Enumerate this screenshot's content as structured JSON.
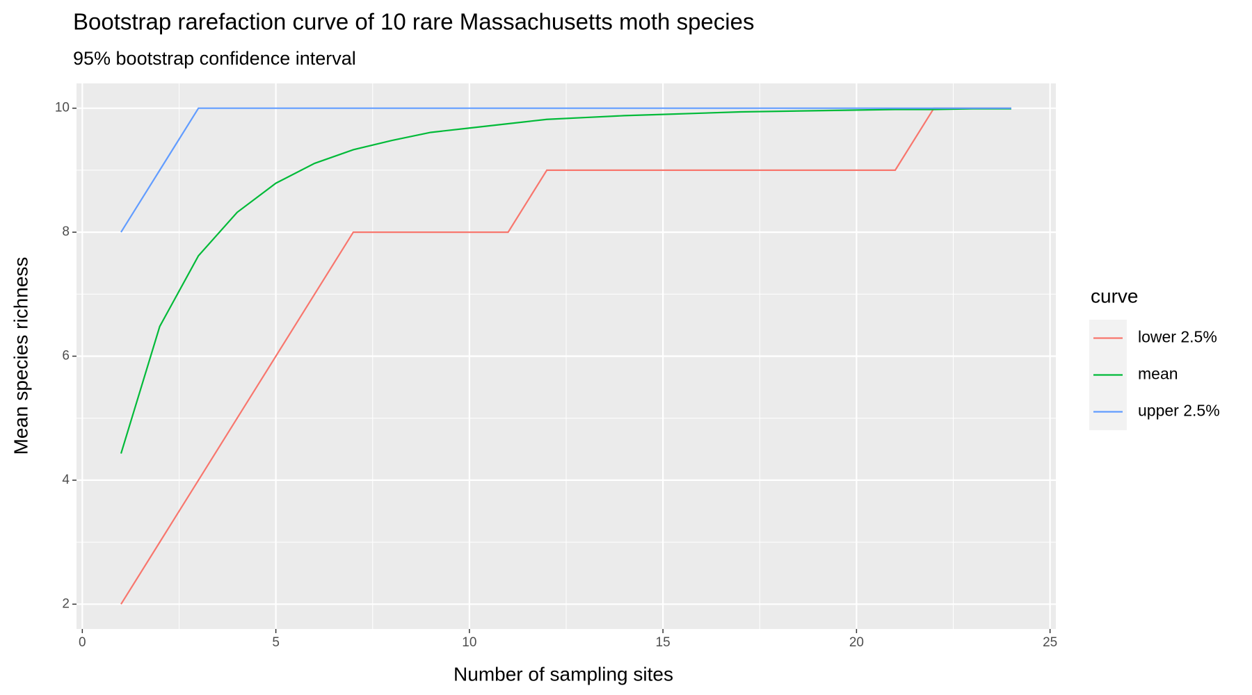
{
  "chart_data": {
    "type": "line",
    "title": "Bootstrap rarefaction curve of 10 rare Massachusetts moth species",
    "subtitle": "95% bootstrap confidence interval",
    "x_label": "Number of sampling sites",
    "y_label": "Mean species richness",
    "legend_title": "curve",
    "legend_position": "right",
    "grid": true,
    "x": [
      1,
      2,
      3,
      4,
      5,
      6,
      7,
      8,
      9,
      10,
      11,
      12,
      13,
      14,
      15,
      16,
      17,
      18,
      19,
      20,
      21,
      22,
      23,
      24
    ],
    "series": [
      {
        "name": "lower 2.5%",
        "color": "#F8766D",
        "values": [
          2,
          3,
          4,
          5,
          6,
          7,
          8,
          8,
          8,
          8,
          8,
          9,
          9,
          9,
          9,
          9,
          9,
          9,
          9,
          9,
          9,
          10,
          10,
          10
        ]
      },
      {
        "name": "mean",
        "color": "#00BA38",
        "values": [
          4.43,
          6.48,
          7.62,
          8.32,
          8.79,
          9.11,
          9.33,
          9.48,
          9.61,
          9.68,
          9.75,
          9.82,
          9.85,
          9.88,
          9.9,
          9.92,
          9.94,
          9.95,
          9.96,
          9.97,
          9.98,
          9.98,
          9.99,
          9.99
        ]
      },
      {
        "name": "upper 2.5%",
        "color": "#619CFF",
        "values": [
          8,
          9,
          10,
          10,
          10,
          10,
          10,
          10,
          10,
          10,
          10,
          10,
          10,
          10,
          10,
          10,
          10,
          10,
          10,
          10,
          10,
          10,
          10,
          10
        ]
      }
    ],
    "xlim": [
      -0.15,
      25.15
    ],
    "ylim": [
      1.6,
      10.4
    ],
    "xticks": [
      0,
      5,
      10,
      15,
      20,
      25
    ],
    "yticks": [
      2,
      4,
      6,
      8,
      10
    ],
    "xminor": [
      2.5,
      7.5,
      12.5,
      17.5,
      22.5
    ],
    "yminor": [
      3,
      5,
      7,
      9
    ]
  }
}
